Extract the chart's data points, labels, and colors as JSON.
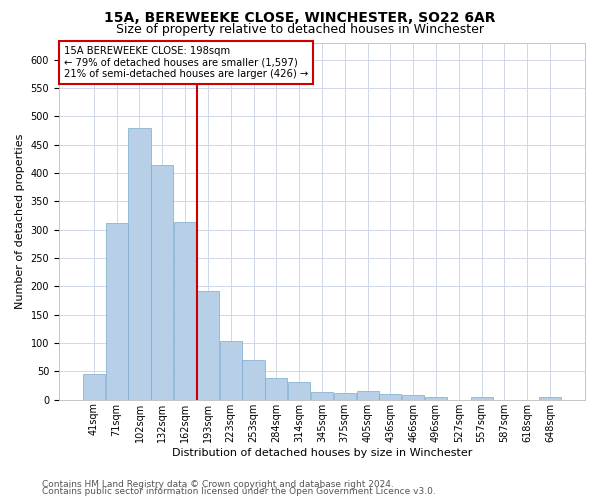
{
  "title": "15A, BEREWEEKE CLOSE, WINCHESTER, SO22 6AR",
  "subtitle": "Size of property relative to detached houses in Winchester",
  "xlabel": "Distribution of detached houses by size in Winchester",
  "ylabel": "Number of detached properties",
  "bar_color": "#b8cfe8",
  "bar_edge_color": "#7aaad0",
  "vline_color": "#cc0000",
  "annotation_box_text": "15A BEREWEEKE CLOSE: 198sqm\n← 79% of detached houses are smaller (1,597)\n21% of semi-detached houses are larger (426) →",
  "annotation_box_color": "#cc0000",
  "categories": [
    "41sqm",
    "71sqm",
    "102sqm",
    "132sqm",
    "162sqm",
    "193sqm",
    "223sqm",
    "253sqm",
    "284sqm",
    "314sqm",
    "345sqm",
    "375sqm",
    "405sqm",
    "436sqm",
    "466sqm",
    "496sqm",
    "527sqm",
    "557sqm",
    "587sqm",
    "618sqm",
    "648sqm"
  ],
  "values": [
    45,
    311,
    480,
    414,
    313,
    191,
    103,
    70,
    38,
    31,
    14,
    12,
    15,
    10,
    8,
    5,
    0,
    5,
    0,
    0,
    5
  ],
  "ylim": [
    0,
    630
  ],
  "yticks": [
    0,
    50,
    100,
    150,
    200,
    250,
    300,
    350,
    400,
    450,
    500,
    550,
    600
  ],
  "footer_line1": "Contains HM Land Registry data © Crown copyright and database right 2024.",
  "footer_line2": "Contains public sector information licensed under the Open Government Licence v3.0.",
  "bg_color": "#ffffff",
  "grid_color": "#d0d8e8",
  "title_fontsize": 10,
  "subtitle_fontsize": 9,
  "axis_label_fontsize": 8,
  "tick_fontsize": 7,
  "footer_fontsize": 6.5
}
